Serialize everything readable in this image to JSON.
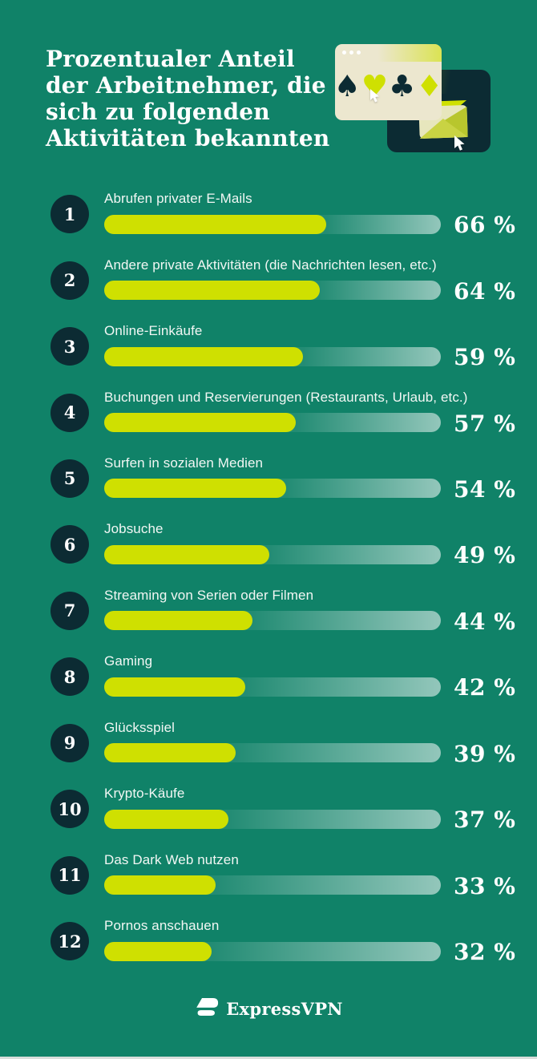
{
  "page": {
    "title": "Prozentualer Anteil\nder Arbeitnehmer, die\nsich zu folgenden\nAktivitäten bekannten",
    "footer_brand": "ExpressVPN",
    "background_color": "#108268"
  },
  "colors": {
    "background": "#108268",
    "accent_lime": "#cfe001",
    "dark_navy": "#0c2b33",
    "cream": "#ece7cf",
    "text_white": "#ffffff"
  },
  "illustration": {
    "suits": [
      {
        "icon": "spade-icon",
        "glyph": "♠",
        "tone": "navy"
      },
      {
        "icon": "heart-icon",
        "glyph": "♥",
        "tone": "lime"
      },
      {
        "icon": "club-icon",
        "glyph": "♣",
        "tone": "navy"
      },
      {
        "icon": "diamond-icon",
        "glyph": "♦",
        "tone": "lime"
      }
    ]
  },
  "chart_data": {
    "type": "bar",
    "orientation": "horizontal",
    "title": "Prozentualer Anteil der Arbeitnehmer, die sich zu folgenden Aktivitäten bekannten",
    "unit": "%",
    "xlim": [
      0,
      100
    ],
    "grid": false,
    "legend": false,
    "ranks": [
      "1",
      "2",
      "3",
      "4",
      "5",
      "6",
      "7",
      "8",
      "9",
      "10",
      "11",
      "12"
    ],
    "categories": [
      "Abrufen privater E-Mails",
      "Andere private Aktivitäten (die Nachrichten lesen, etc.)",
      "Online-Einkäufe",
      "Buchungen und Reservierungen (Restaurants, Urlaub, etc.)",
      "Surfen in sozialen Medien",
      "Jobsuche",
      "Streaming von Serien oder Filmen",
      "Gaming",
      "Glücksspiel",
      "Krypto-Käufe",
      "Das Dark Web nutzen",
      "Pornos anschauen"
    ],
    "values": [
      66,
      64,
      59,
      57,
      54,
      49,
      44,
      42,
      39,
      37,
      33,
      32
    ],
    "value_labels": [
      "66 %",
      "64 %",
      "59 %",
      "57 %",
      "54 %",
      "49 %",
      "44 %",
      "42 %",
      "39 %",
      "37 %",
      "33 %",
      "32 %"
    ]
  }
}
